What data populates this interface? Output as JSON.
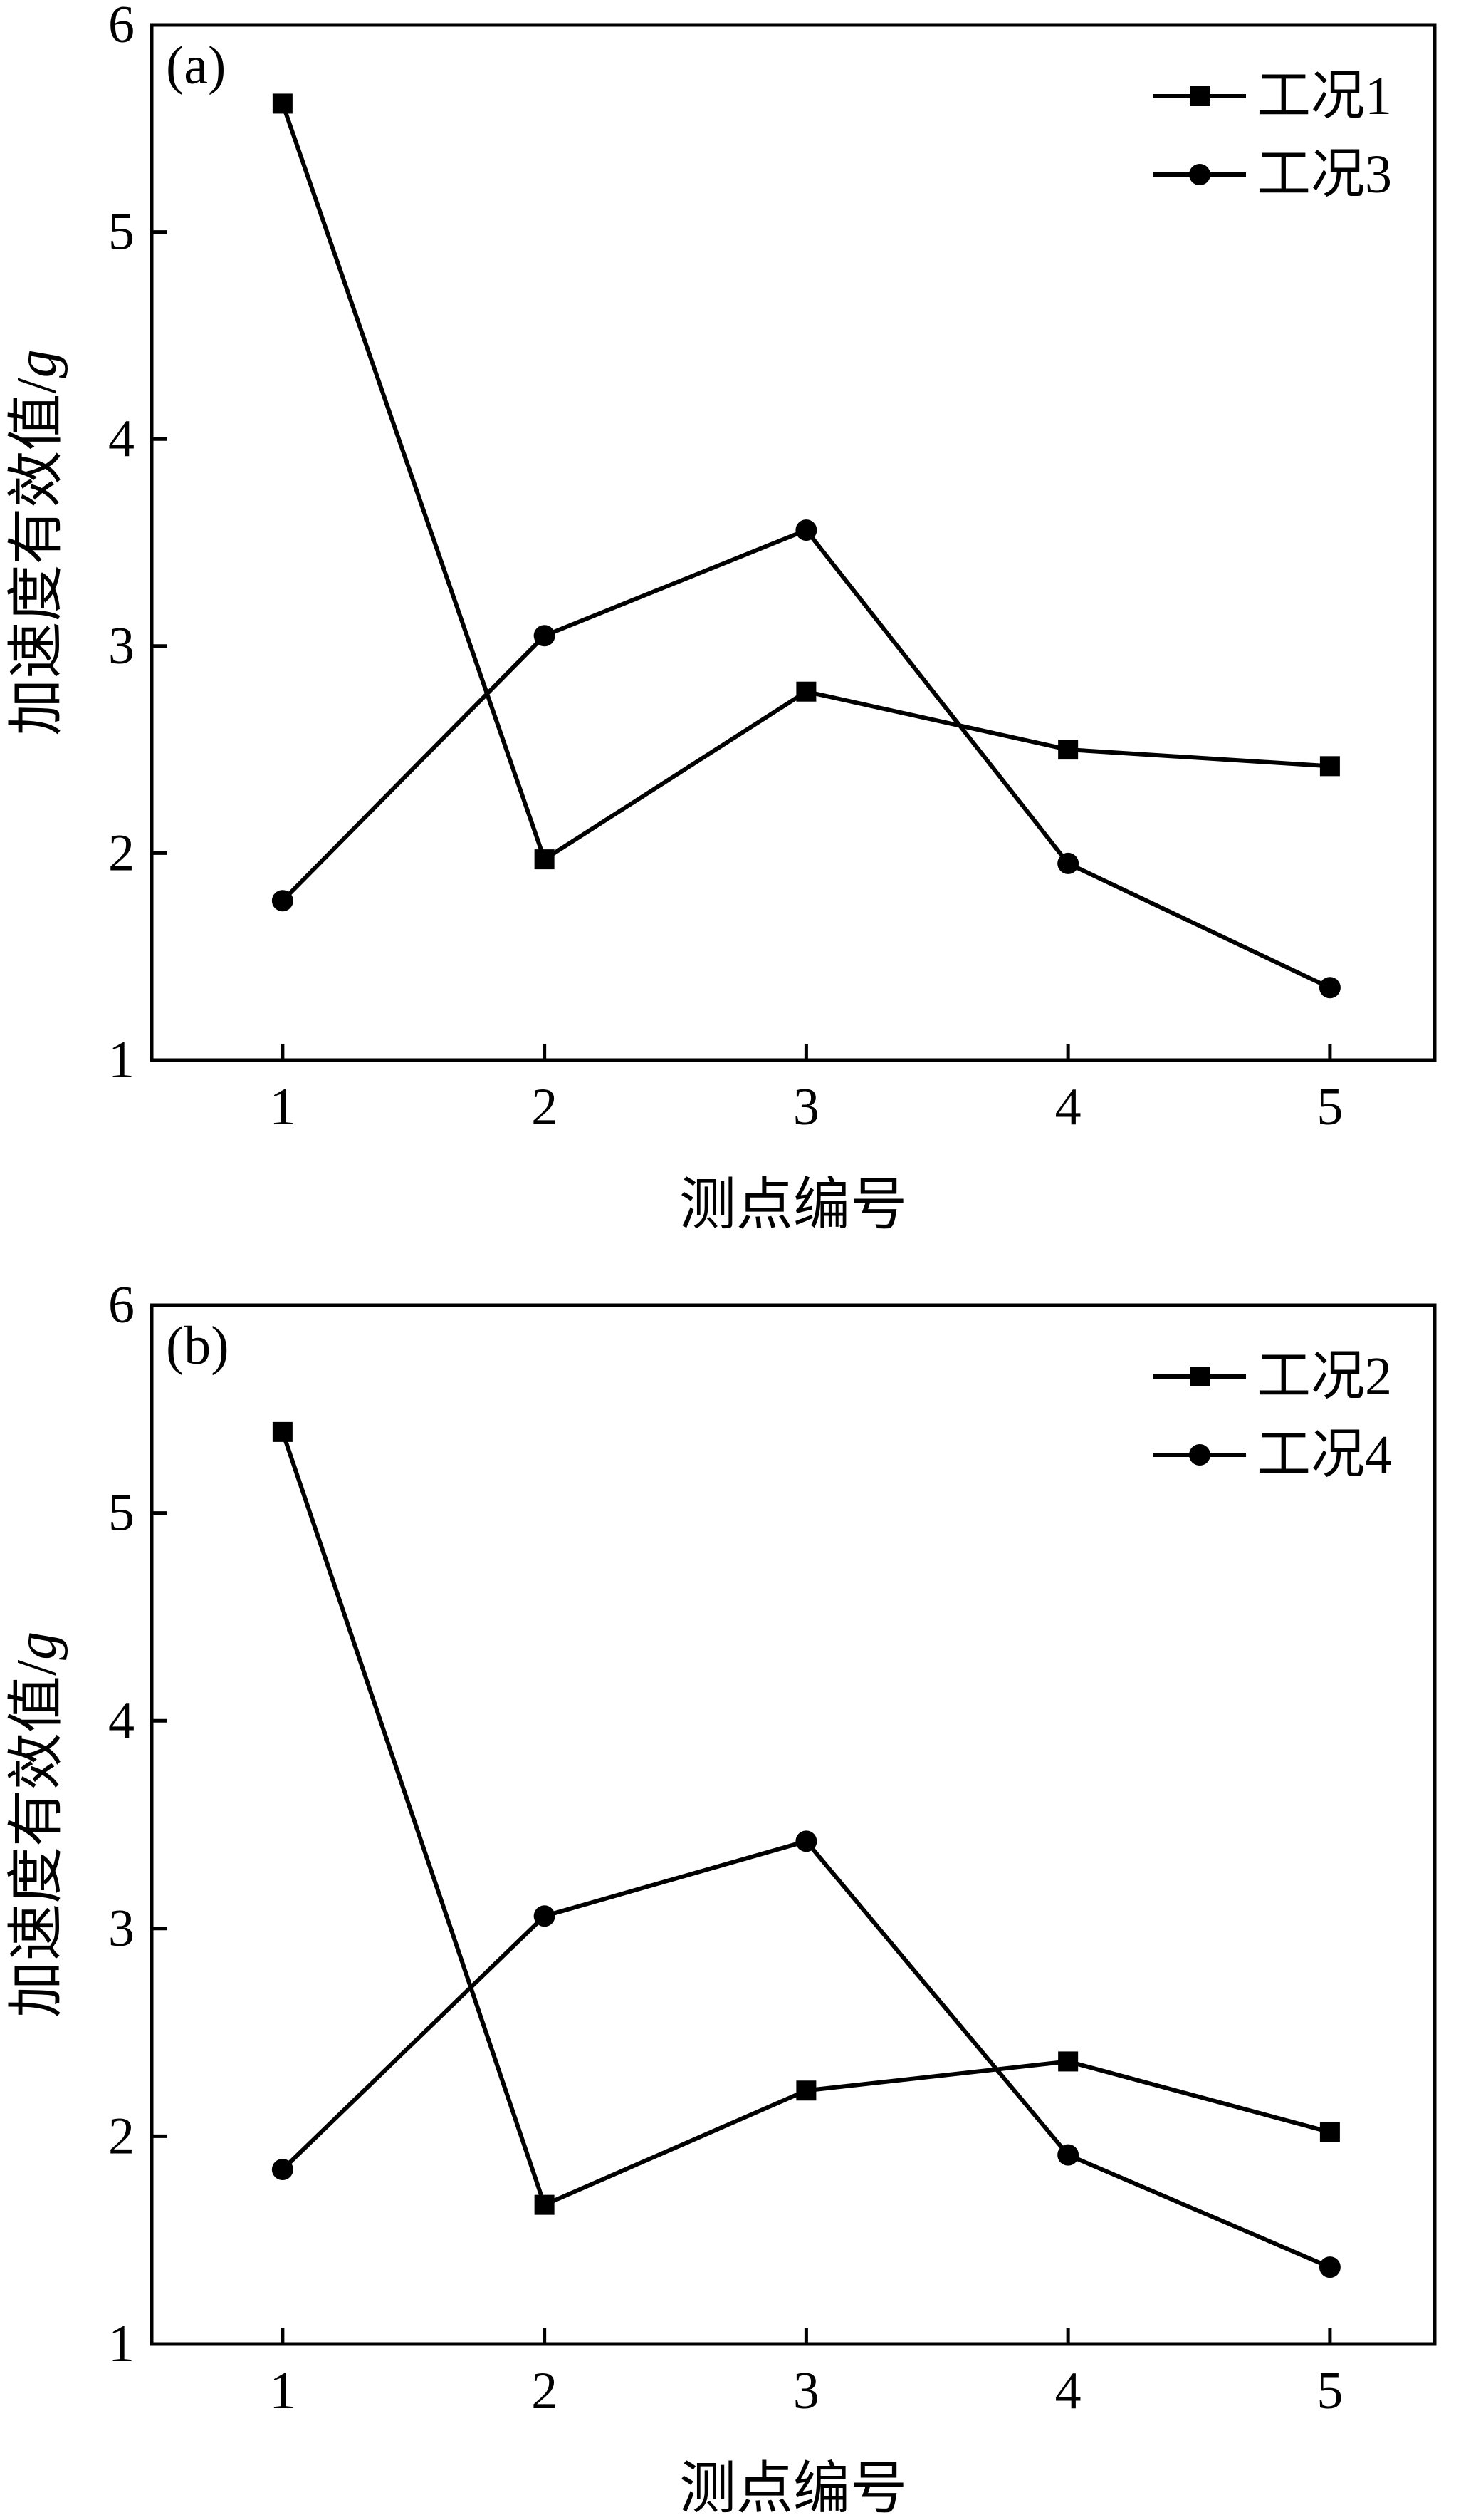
{
  "figure": {
    "colors": {
      "line": "#000000",
      "background": "#ffffff"
    }
  },
  "chart_data": [
    {
      "type": "line",
      "panel_label": "(a)",
      "xlabel": "测点编号",
      "ylabel": "加速度有效值/",
      "ylabel_unit": "g",
      "x": [
        1,
        2,
        3,
        4,
        5
      ],
      "xlim": [
        0.5,
        5.4
      ],
      "ylim": [
        1,
        6
      ],
      "xticks": [
        "1",
        "2",
        "3",
        "4",
        "5"
      ],
      "yticks": [
        "1",
        "2",
        "3",
        "4",
        "5",
        "6"
      ],
      "grid": false,
      "legend_position": "top-right",
      "series": [
        {
          "name": "工况1",
          "marker": "square",
          "values": [
            5.62,
            1.97,
            2.78,
            2.5,
            2.42
          ]
        },
        {
          "name": "工况3",
          "marker": "circle",
          "values": [
            1.77,
            3.05,
            3.56,
            1.95,
            1.35
          ]
        }
      ]
    },
    {
      "type": "line",
      "panel_label": "(b)",
      "xlabel": "测点编号",
      "ylabel": "加速度有效值/",
      "ylabel_unit": "g",
      "x": [
        1,
        2,
        3,
        4,
        5
      ],
      "xlim": [
        0.5,
        5.4
      ],
      "ylim": [
        1,
        6
      ],
      "xticks": [
        "1",
        "2",
        "3",
        "4",
        "5"
      ],
      "yticks": [
        "1",
        "2",
        "3",
        "4",
        "5",
        "6"
      ],
      "grid": false,
      "legend_position": "top-right",
      "series": [
        {
          "name": "工况2",
          "marker": "square",
          "values": [
            5.39,
            1.67,
            2.22,
            2.36,
            2.02
          ]
        },
        {
          "name": "工况4",
          "marker": "circle",
          "values": [
            1.84,
            3.06,
            3.42,
            1.91,
            1.37
          ]
        }
      ]
    }
  ]
}
